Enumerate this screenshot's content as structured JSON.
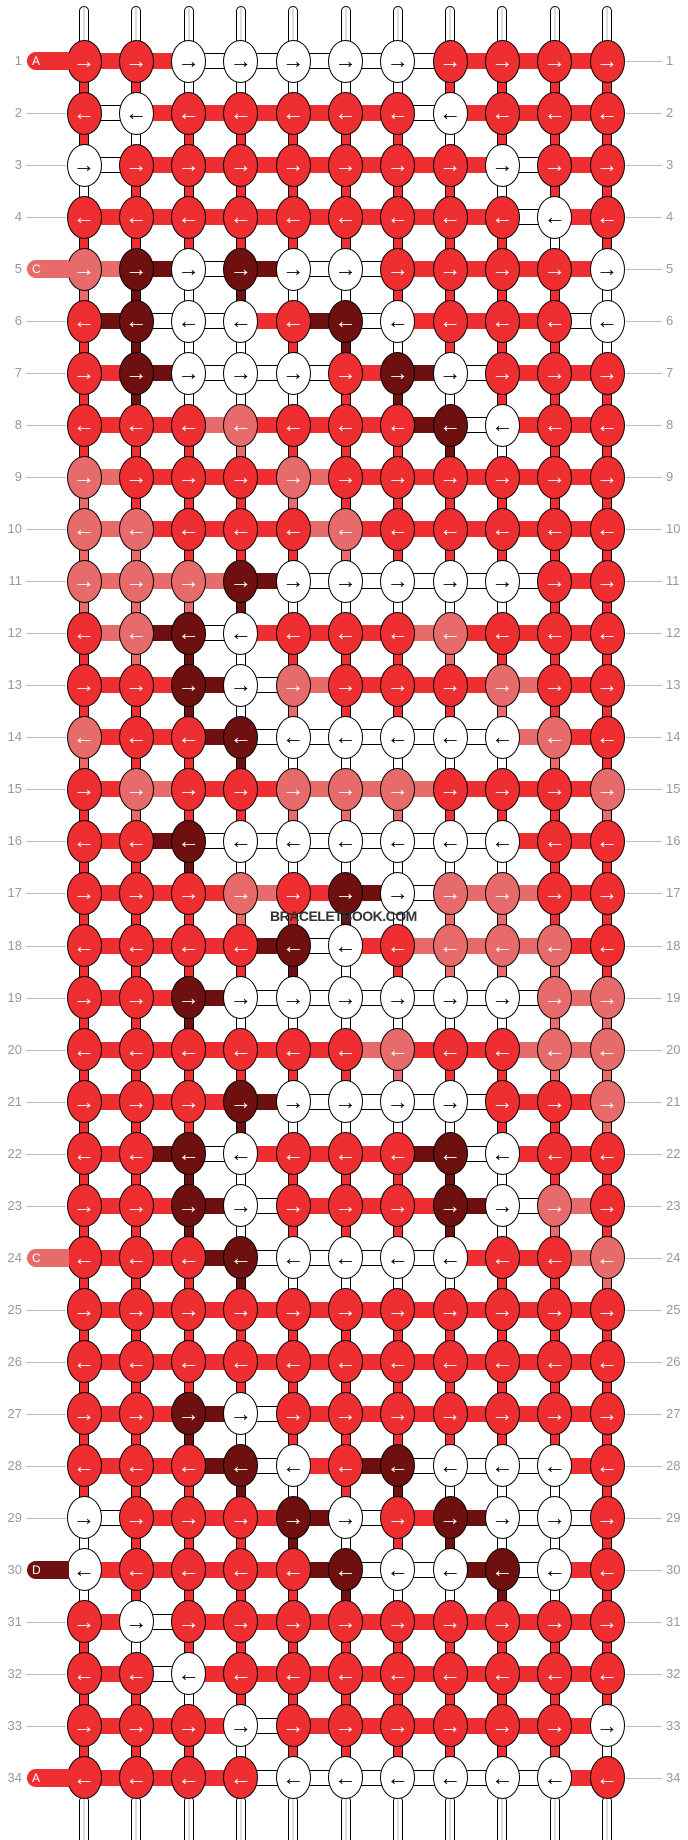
{
  "watermark": "BRACELETBOOK.COM",
  "colors": {
    "R": "#ee2e31",
    "W": "#ffffff",
    "C": "#e86b6b",
    "D": "#6e1010"
  },
  "arrow_icons": {
    "right": "arrow-right-icon",
    "left": "arrow-left-icon"
  },
  "thread_labels": [
    {
      "row": 1,
      "letter": "A",
      "color": "R"
    },
    {
      "row": 5,
      "letter": "C",
      "color": "C"
    },
    {
      "row": 24,
      "letter": "C",
      "color": "C"
    },
    {
      "row": 30,
      "letter": "D",
      "color": "D"
    },
    {
      "row": 34,
      "letter": "A",
      "color": "R"
    }
  ],
  "rows": [
    {
      "n": "1",
      "dir": "right",
      "knots": "RRWWWWWRRRR"
    },
    {
      "n": "2",
      "dir": "left",
      "knots": "RWRRRRRWRRR"
    },
    {
      "n": "3",
      "dir": "right",
      "knots": "WRRRRRRRWRR"
    },
    {
      "n": "4",
      "dir": "left",
      "knots": "RRRRRRRRRWR"
    },
    {
      "n": "5",
      "dir": "right",
      "knots": "CDWDWWRRRRW"
    },
    {
      "n": "6",
      "dir": "left",
      "knots": "RDWWRDWRRRW"
    },
    {
      "n": "7",
      "dir": "right",
      "knots": "RDWWWRDWRRR"
    },
    {
      "n": "8",
      "dir": "left",
      "knots": "RRRCRRRDWRR"
    },
    {
      "n": "9",
      "dir": "right",
      "knots": "CRRRCRRRRRR"
    },
    {
      "n": "10",
      "dir": "left",
      "knots": "CCRRRCRRRRR"
    },
    {
      "n": "11",
      "dir": "right",
      "knots": "CCCDWWWWWRR"
    },
    {
      "n": "12",
      "dir": "left",
      "knots": "RCDWRRRCRRR"
    },
    {
      "n": "13",
      "dir": "right",
      "knots": "RRDWCRRRCRR"
    },
    {
      "n": "14",
      "dir": "left",
      "knots": "CRRDWWWWWCR"
    },
    {
      "n": "15",
      "dir": "right",
      "knots": "RCRRCCCRRRC"
    },
    {
      "n": "16",
      "dir": "left",
      "knots": "RRDWWWWWWRR"
    },
    {
      "n": "17",
      "dir": "right",
      "knots": "RRRCRDWCCRR"
    },
    {
      "n": "18",
      "dir": "left",
      "knots": "RRRRDWRCCCR"
    },
    {
      "n": "19",
      "dir": "right",
      "knots": "RRDWWWWWWCC"
    },
    {
      "n": "20",
      "dir": "left",
      "knots": "RRRRRRCRRCC"
    },
    {
      "n": "21",
      "dir": "right",
      "knots": "RRRDWWWWRRC"
    },
    {
      "n": "22",
      "dir": "left",
      "knots": "RRDWRRRDWRR"
    },
    {
      "n": "23",
      "dir": "right",
      "knots": "RRDWRRRDWCR"
    },
    {
      "n": "24",
      "dir": "left",
      "knots": "RRRDWWWWRRC"
    },
    {
      "n": "25",
      "dir": "right",
      "knots": "RRRRRRRRRRR"
    },
    {
      "n": "26",
      "dir": "left",
      "knots": "RRRRRRRRRRR"
    },
    {
      "n": "27",
      "dir": "right",
      "knots": "RRDWRRRRRRR"
    },
    {
      "n": "28",
      "dir": "left",
      "knots": "RRRDWRDWWWR"
    },
    {
      "n": "29",
      "dir": "right",
      "knots": "WRRRDWRDWWR"
    },
    {
      "n": "30",
      "dir": "left",
      "knots": "WRRRRDWWDWR"
    },
    {
      "n": "31",
      "dir": "right",
      "knots": "RWRRRRRRRRR"
    },
    {
      "n": "32",
      "dir": "left",
      "knots": "RRWRRRRRRRR"
    },
    {
      "n": "33",
      "dir": "right",
      "knots": "RRRWRRRRRRW"
    },
    {
      "n": "34",
      "dir": "left",
      "knots": "RRRRWWWWWWR"
    }
  ]
}
